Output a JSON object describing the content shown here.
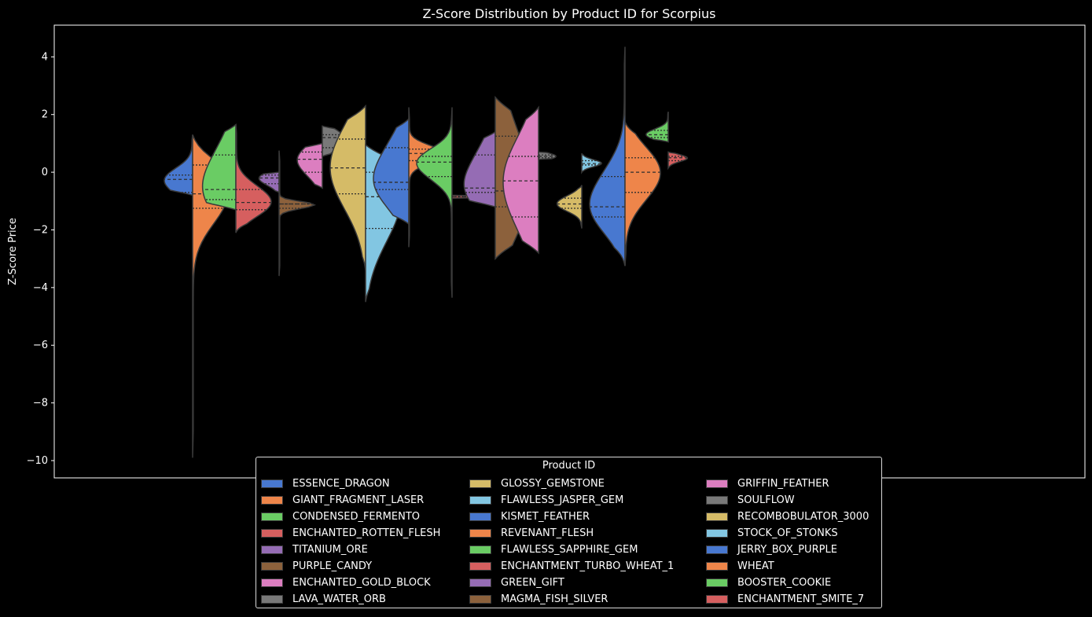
{
  "chart_data": {
    "type": "violin",
    "title": "Z-Score Distribution by Product ID for Scorpius",
    "xlabel": "",
    "ylabel": "Z-Score Price",
    "ylim": [
      -10.6,
      5.1
    ],
    "yticks": [
      4,
      2,
      0,
      -2,
      -4,
      -6,
      -8,
      -10
    ],
    "ytick_labels": [
      "4",
      "2",
      "0",
      "−2",
      "−4",
      "−6",
      "−8",
      "−10"
    ],
    "grid": false,
    "legend": {
      "title": "Product ID",
      "placement": "bottom-center",
      "columns": 3
    },
    "split": true,
    "inner": "quartile",
    "series": [
      {
        "name": "ESSENCE_DRAGON",
        "color": "#4878d0",
        "side": "left",
        "min": -0.8,
        "max": 1.3,
        "q1": -0.7,
        "median": -0.25,
        "q3": -0.1
      },
      {
        "name": "GIANT_FRAGMENT_LASER",
        "color": "#ee854a",
        "side": "right",
        "min": -9.9,
        "max": 1.3,
        "q1": -1.25,
        "median": -0.75,
        "q3": 0.25
      },
      {
        "name": "CONDENSED_FERMENTO",
        "color": "#6acc64",
        "side": "left",
        "min": -1.3,
        "max": 1.65,
        "q1": -0.95,
        "median": -0.6,
        "q3": 0.6
      },
      {
        "name": "ENCHANTED_ROTTEN_FLESH",
        "color": "#d65f5f",
        "side": "right",
        "min": -2.1,
        "max": 1.65,
        "q1": -1.3,
        "median": -1.05,
        "q3": -0.6
      },
      {
        "name": "TITANIUM_ORE",
        "color": "#956cb4",
        "side": "left",
        "min": -0.7,
        "max": 0.0,
        "q1": -0.4,
        "median": -0.2,
        "q3": -0.1
      },
      {
        "name": "PURPLE_CANDY",
        "color": "#8c613c",
        "side": "right",
        "min": -3.6,
        "max": 0.75,
        "q1": -1.25,
        "median": -1.1,
        "q3": -1.1
      },
      {
        "name": "ENCHANTED_GOLD_BLOCK",
        "color": "#dc7ec0",
        "side": "left",
        "min": -0.55,
        "max": 1.0,
        "q1": 0.0,
        "median": 0.45,
        "q3": 0.7
      },
      {
        "name": "LAVA_WATER_ORB",
        "color": "#797979",
        "side": "right",
        "min": 0.55,
        "max": 1.6,
        "q1": 0.85,
        "median": 1.2,
        "q3": 1.3
      },
      {
        "name": "GLOSSY_GEMSTONE",
        "color": "#d5bb67",
        "side": "left",
        "min": -3.4,
        "max": 2.3,
        "q1": -0.75,
        "median": 0.15,
        "q3": 1.15
      },
      {
        "name": "FLAWLESS_JASPER_GEM",
        "color": "#82c6e2",
        "side": "right",
        "min": -4.5,
        "max": 0.95,
        "q1": -1.95,
        "median": -0.85,
        "q3": 0.0
      },
      {
        "name": "KISMET_FEATHER",
        "color": "#4878d0",
        "side": "left",
        "min": -1.8,
        "max": 1.85,
        "q1": -0.6,
        "median": -0.35,
        "q3": 0.85
      },
      {
        "name": "REVENANT_FLESH",
        "color": "#ee854a",
        "side": "right",
        "min": -2.6,
        "max": 2.25,
        "q1": 0.4,
        "median": 0.65,
        "q3": 0.8
      },
      {
        "name": "FLAWLESS_SAPPHIRE_GEM",
        "color": "#6acc64",
        "side": "left",
        "min": -4.35,
        "max": 2.25,
        "q1": -0.15,
        "median": 0.35,
        "q3": 0.55
      },
      {
        "name": "ENCHANTMENT_TURBO_WHEAT_1",
        "color": "#d65f5f",
        "side": "right",
        "min": -0.9,
        "max": -0.8,
        "q1": -0.85,
        "median": -0.85,
        "q3": -0.85
      },
      {
        "name": "GREEN_GIFT",
        "color": "#956cb4",
        "side": "left",
        "min": -1.2,
        "max": 1.4,
        "q1": -0.7,
        "median": -0.55,
        "q3": 0.6
      },
      {
        "name": "MAGMA_FISH_SILVER",
        "color": "#8c613c",
        "side": "right",
        "min": -3.0,
        "max": 2.6,
        "q1": -1.2,
        "median": -0.65,
        "q3": 1.25
      },
      {
        "name": "GRIFFIN_FEATHER",
        "color": "#dc7ec0",
        "side": "left",
        "min": -2.8,
        "max": 2.25,
        "q1": -1.55,
        "median": -0.3,
        "q3": 0.55
      },
      {
        "name": "SOULFLOW",
        "color": "#797979",
        "side": "right",
        "min": 0.45,
        "max": 0.7,
        "q1": 0.5,
        "median": 0.55,
        "q3": 0.6
      },
      {
        "name": "RECOMBOBULATOR_3000",
        "color": "#d5bb67",
        "side": "left",
        "min": -1.95,
        "max": -0.45,
        "q1": -1.25,
        "median": -1.1,
        "q3": -0.9
      },
      {
        "name": "STOCK_OF_STONKS",
        "color": "#82c6e2",
        "side": "right",
        "min": 0.0,
        "max": 0.65,
        "q1": 0.25,
        "median": 0.3,
        "q3": 0.4
      },
      {
        "name": "JERRY_BOX_PURPLE",
        "color": "#4878d0",
        "side": "left",
        "min": -3.25,
        "max": 4.35,
        "q1": -1.55,
        "median": -1.2,
        "q3": -0.15
      },
      {
        "name": "WHEAT",
        "color": "#ee854a",
        "side": "right",
        "min": -3.25,
        "max": 1.75,
        "q1": -0.7,
        "median": 0.0,
        "q3": 0.5
      },
      {
        "name": "BOOSTER_COOKIE",
        "color": "#6acc64",
        "side": "left",
        "min": 1.05,
        "max": 2.1,
        "q1": 1.2,
        "median": 1.3,
        "q3": 1.45
      },
      {
        "name": "ENCHANTMENT_SMITE_7",
        "color": "#d65f5f",
        "side": "right",
        "min": 0.15,
        "max": 0.7,
        "q1": 0.4,
        "median": 0.5,
        "q3": 0.55
      }
    ]
  }
}
